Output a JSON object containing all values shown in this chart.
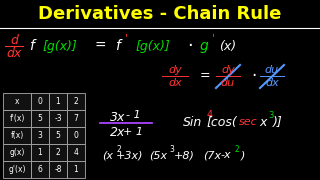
{
  "title": "Derivatives - Chain Rule",
  "title_color": "#FFFF00",
  "bg_color": "#000000",
  "table_data": [
    [
      "x",
      "0",
      "1",
      "2"
    ],
    [
      "f'(x)",
      "5",
      "-3",
      "7"
    ],
    [
      "f(x)",
      "3",
      "5",
      "0"
    ],
    [
      "g(x)",
      "1",
      "2",
      "4"
    ],
    [
      "g'(x)",
      "6",
      "-8",
      "1"
    ]
  ]
}
